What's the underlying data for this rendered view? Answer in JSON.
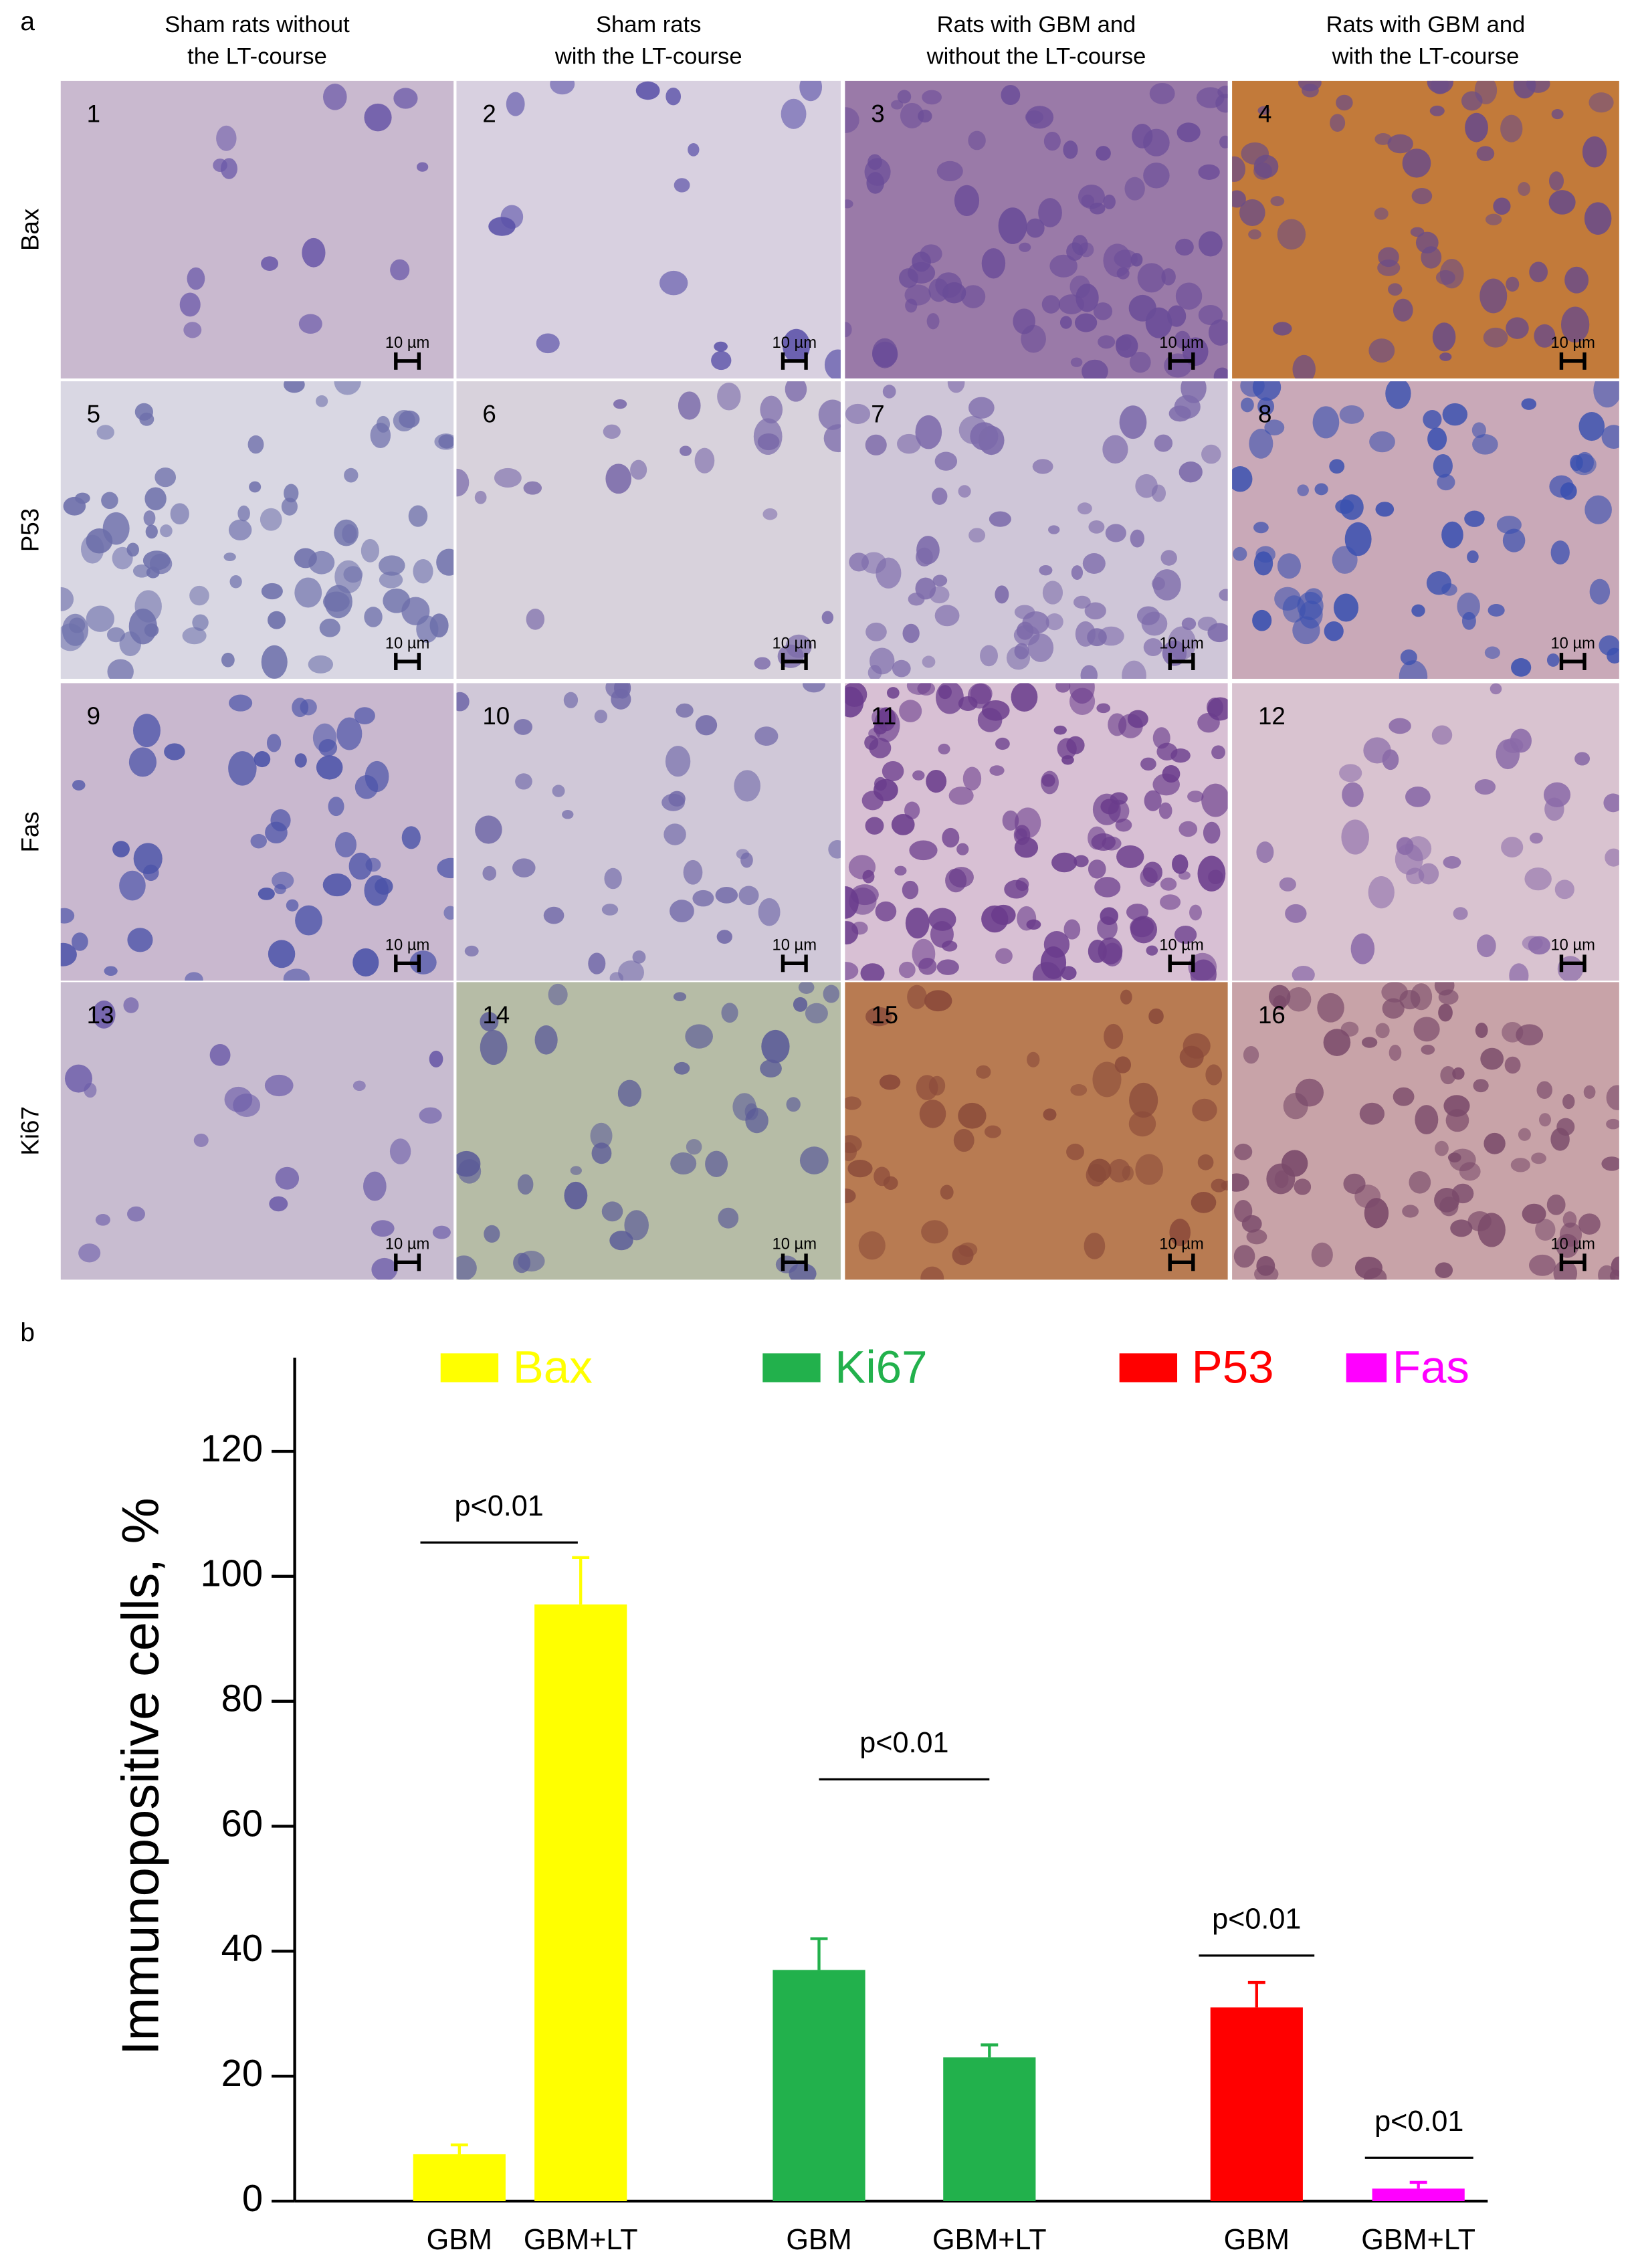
{
  "figure": {
    "panel_labels": [
      "a",
      "b"
    ],
    "columns": [
      [
        "Sham rats without",
        "the LT-course"
      ],
      [
        "Sham rats",
        "with the LT-course"
      ],
      [
        "Rats with GBM and",
        "without the LT-course"
      ],
      [
        "Rats with GBM and",
        "with the LT-course"
      ]
    ],
    "rows": [
      "Bax",
      "P53",
      "Fas",
      "Ki67"
    ],
    "panel_numbers": [
      "1",
      "2",
      "3",
      "4",
      "5",
      "6",
      "7",
      "8",
      "9",
      "10",
      "11",
      "12",
      "13",
      "14",
      "15",
      "16"
    ],
    "scale_label": "10 µm"
  },
  "chart_data": {
    "type": "bar",
    "ylabel": "Immunopositive cells, %",
    "categories": [
      "GBM",
      "GBM+LT",
      "GBM",
      "GBM+LT",
      "GBM",
      "GBM+LT"
    ],
    "series": [
      {
        "name": "Bax",
        "color": "#ffff00",
        "values": [
          7.5,
          95.5,
          null,
          null,
          null,
          null
        ],
        "errors": [
          1.5,
          7.5,
          null,
          null,
          null,
          null
        ]
      },
      {
        "name": "Ki67",
        "color": "#22b14c",
        "values": [
          null,
          null,
          37,
          23,
          null,
          null
        ],
        "errors": [
          null,
          null,
          5,
          2,
          null,
          null
        ]
      },
      {
        "name": "P53",
        "color": "#ff0000",
        "values": [
          null,
          null,
          null,
          null,
          31,
          null
        ],
        "errors": [
          null,
          null,
          null,
          null,
          4,
          null
        ]
      },
      {
        "name": "Fas",
        "color": "#ff00ff",
        "values": [
          null,
          null,
          null,
          null,
          null,
          2
        ],
        "errors": [
          null,
          null,
          null,
          null,
          null,
          1
        ]
      }
    ],
    "annotations": [
      "p<0.01",
      "p<0.01",
      "p<0.01",
      "p<0.01"
    ],
    "ylim": [
      0,
      135
    ],
    "yticks": [
      0,
      20,
      40,
      60,
      80,
      100,
      120
    ],
    "legend": "top"
  }
}
